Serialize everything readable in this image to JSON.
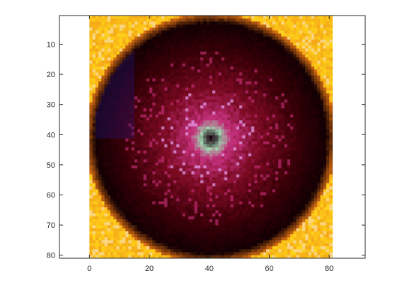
{
  "chart_data": {
    "type": "heatmap",
    "title": "",
    "xlabel": "",
    "ylabel": "",
    "xlim": [
      -10,
      92
    ],
    "ylim": [
      81,
      0.5
    ],
    "y_direction": "reverse",
    "x_ticks": [
      0,
      20,
      40,
      60,
      80
    ],
    "x_tick_labels": [
      "0",
      "20",
      "40",
      "60",
      "80"
    ],
    "y_ticks": [
      10,
      20,
      30,
      40,
      50,
      60,
      70,
      80
    ],
    "y_tick_labels": [
      "10",
      "20",
      "30",
      "40",
      "50",
      "60",
      "70",
      "80"
    ],
    "image": {
      "x_extent": [
        0,
        81
      ],
      "y_extent": [
        0.5,
        81
      ],
      "rows": 81,
      "cols": 81,
      "description_colors": {
        "background_corners": "#ffd21a",
        "outer_ring": "#3a0008",
        "mid_ring": "#7a0a22",
        "inner_magenta": "#c2307a",
        "center_highlight": "#9fd6b0",
        "center_dark": "#1a0010"
      }
    },
    "grid": false,
    "box": true
  },
  "colors": {
    "axis_line": "#262626",
    "tick_text": "#262626",
    "background": "#ffffff"
  }
}
